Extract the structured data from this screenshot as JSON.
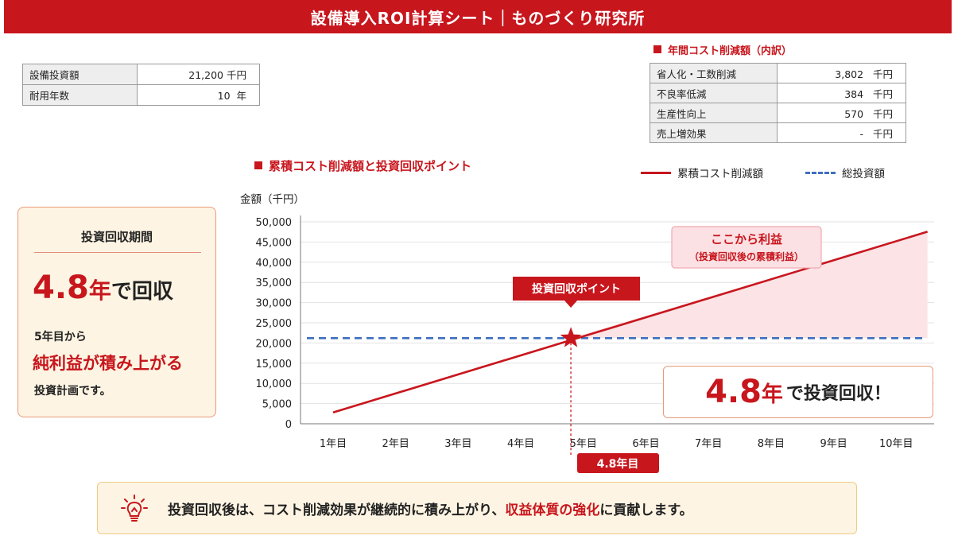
{
  "header": {
    "title": "設備導入ROI計算シート｜ものづくり研究所"
  },
  "investment_table": [
    {
      "label": "設備投資額",
      "value": "21,200",
      "unit": "千円"
    },
    {
      "label": "耐用年数",
      "value": "10",
      "unit": "年"
    }
  ],
  "breakdown": {
    "title": "年間コスト削減額（内訳）",
    "rows": [
      {
        "label": "省人化・工数削減",
        "value": "3,802",
        "unit": "千円"
      },
      {
        "label": "不良率低減",
        "value": "384",
        "unit": "千円"
      },
      {
        "label": "生産性向上",
        "value": "570",
        "unit": "千円"
      },
      {
        "label": "売上増効果",
        "value": "-",
        "unit": "千円"
      }
    ]
  },
  "payback_card": {
    "title": "投資回収期間",
    "value": "4.8",
    "unit": "年",
    "suffix": "で回収",
    "line1": "5年目から",
    "line2": "純利益が積み上がる",
    "line3": "投資計画です。"
  },
  "chart_data": {
    "type": "line",
    "title": "累積コスト削減額と投資回収ポイント",
    "ylabel": "金額（千円）",
    "ylim": [
      0,
      50000
    ],
    "yticks": [
      "50,000",
      "45,000",
      "40,000",
      "35,000",
      "30,000",
      "25,000",
      "20,000",
      "15,000",
      "10,000",
      "5,000",
      "0"
    ],
    "categories": [
      "1年目",
      "2年目",
      "3年目",
      "4年目",
      "5年目",
      "6年目",
      "7年目",
      "8年目",
      "9年目",
      "10年目"
    ],
    "series": [
      {
        "name": "累積コスト削減額",
        "values": [
          2800,
          7400,
          12100,
          16800,
          21500,
          26300,
          31000,
          35700,
          40400,
          45200
        ]
      },
      {
        "name": "総投資額",
        "values": [
          21200,
          21200,
          21200,
          21200,
          21200,
          21200,
          21200,
          21200,
          21200,
          21200
        ]
      }
    ],
    "colors": {
      "cumulative": "#c8161d",
      "investment": "#3f6fbf",
      "profit_fill": "#fbe3e6"
    },
    "grid": "horizontal",
    "legend": "top-right",
    "payback_year": 4.8,
    "payback_value": 21200,
    "payback_label": "投資回収ポイント",
    "payback_axis_label": "4.8年目",
    "profit_label": "ここから利益",
    "profit_sublabel": "（投資回収後の累積利益）"
  },
  "callout": {
    "value": "4.8",
    "unit": "年",
    "text": "で投資回収！"
  },
  "footer": {
    "icon": "lightbulb-icon",
    "text_before": "投資回収後は、コスト削減効果が継続的に積み上がり、",
    "highlight": "収益体質の強化",
    "text_after": "に貢献します。"
  }
}
